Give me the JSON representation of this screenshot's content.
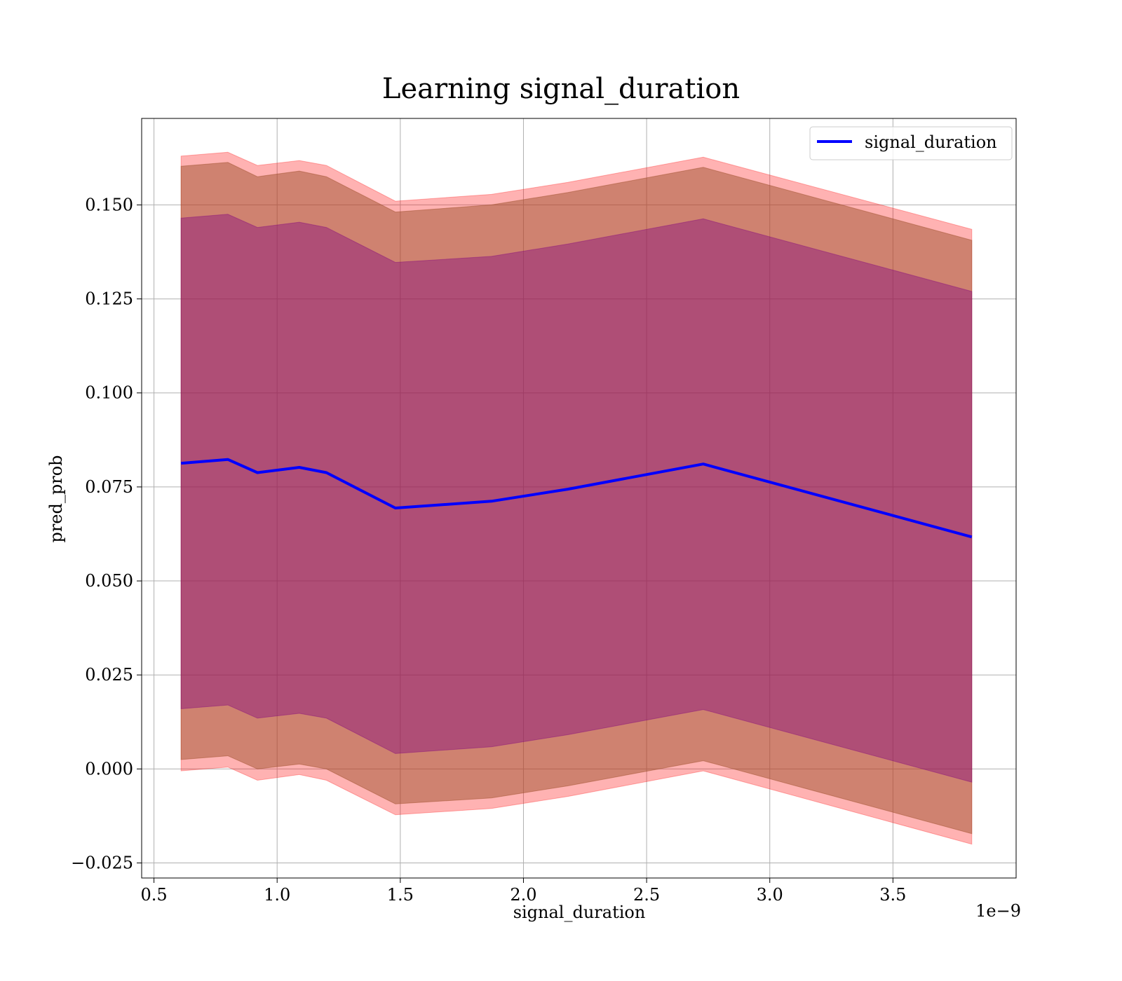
{
  "chart_data": {
    "type": "line",
    "title": "Learning signal_duration",
    "xlabel": "signal_duration",
    "ylabel": "pred_prob",
    "x_offset_text": "1e−9",
    "x_scale": 1e-09,
    "xlim": [
      0.45,
      4.0
    ],
    "ylim": [
      -0.029,
      0.173
    ],
    "grid": true,
    "legend_position": "top-right",
    "x_ticks": [
      0.5,
      1.0,
      1.5,
      2.0,
      2.5,
      3.0,
      3.5
    ],
    "x_tick_labels": [
      "0.5",
      "1.0",
      "1.5",
      "2.0",
      "2.5",
      "3.0",
      "3.5"
    ],
    "y_ticks": [
      -0.025,
      0.0,
      0.025,
      0.05,
      0.075,
      0.1,
      0.125,
      0.15
    ],
    "y_tick_labels": [
      "−0.025",
      "0.000",
      "0.025",
      "0.050",
      "0.075",
      "0.100",
      "0.125",
      "0.150"
    ],
    "x": [
      0.61,
      0.8,
      0.92,
      1.09,
      1.2,
      1.48,
      1.87,
      2.18,
      2.73,
      3.82
    ],
    "series": [
      {
        "name": "signal_duration",
        "color": "#0000ff",
        "values": [
          0.0813,
          0.0823,
          0.0788,
          0.0802,
          0.0788,
          0.0694,
          0.0712,
          0.0744,
          0.0811,
          0.0617
        ]
      }
    ],
    "bands": [
      {
        "role": "outer",
        "color": "#ff0000",
        "opacity": 0.3,
        "upper": [
          0.163,
          0.164,
          0.1605,
          0.1618,
          0.1605,
          0.151,
          0.1528,
          0.156,
          0.1627,
          0.1435
        ],
        "lower": [
          -0.0005,
          0.0005,
          -0.003,
          -0.0015,
          -0.003,
          -0.0122,
          -0.0105,
          -0.0073,
          -0.0005,
          -0.02
        ]
      },
      {
        "role": "middle",
        "color": "#a0522d",
        "opacity": 0.5,
        "upper": [
          0.1603,
          0.1613,
          0.1575,
          0.159,
          0.1575,
          0.1481,
          0.15,
          0.1533,
          0.16,
          0.1406
        ],
        "lower": [
          0.0025,
          0.0035,
          0.0,
          0.0013,
          0.0,
          -0.0093,
          -0.0077,
          -0.0045,
          0.0022,
          -0.0172
        ]
      },
      {
        "role": "inner",
        "color": "#800080",
        "opacity": 0.4,
        "upper": [
          0.1465,
          0.1475,
          0.144,
          0.1454,
          0.144,
          0.1347,
          0.1363,
          0.1396,
          0.1463,
          0.127
        ],
        "lower": [
          0.016,
          0.017,
          0.0135,
          0.0148,
          0.0135,
          0.0041,
          0.0059,
          0.0091,
          0.0158,
          -0.0035
        ]
      }
    ]
  }
}
